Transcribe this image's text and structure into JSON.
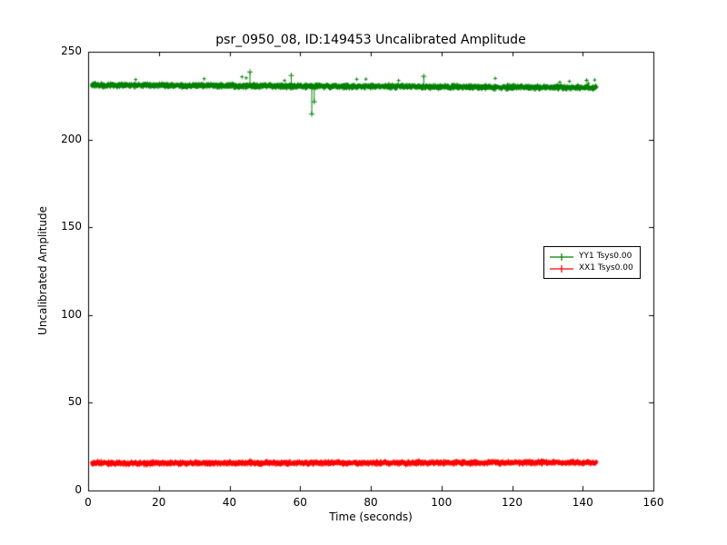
{
  "chart_data": {
    "type": "line",
    "title": "psr_0950_08, ID:149453 Uncalibrated Amplitude",
    "xlabel": "Time (seconds)",
    "ylabel": "Uncalibrated Amplitude",
    "xlim": [
      0,
      160
    ],
    "ylim": [
      0,
      250
    ],
    "xticks": [
      0,
      20,
      40,
      60,
      80,
      100,
      120,
      140,
      160
    ],
    "yticks": [
      0,
      50,
      100,
      150,
      200,
      250
    ],
    "grid": false,
    "legend": {
      "position": "center right",
      "entries": [
        {
          "label": "YY1 Tsys0.00",
          "color": "#008000"
        },
        {
          "label": "XX1 Tsys0.00",
          "color": "#ff0000"
        }
      ]
    },
    "series": [
      {
        "name": "YY1 Tsys0.00",
        "color": "#008000",
        "marker": "plus",
        "x_range": [
          1,
          144
        ],
        "baseline": 231,
        "trend_per_sec": -0.01,
        "noise_halfwidth": 1.2,
        "spike_prob": 0.006,
        "spike_up": 4,
        "seed": 42,
        "approx_x": [
          0,
          10,
          20,
          30,
          40,
          50,
          60,
          70,
          80,
          90,
          100,
          110,
          120,
          130,
          140,
          144
        ],
        "approx_values": [
          231,
          231,
          231.5,
          231,
          231,
          230.5,
          231,
          231,
          230.5,
          230.5,
          231,
          230.5,
          230.5,
          230.5,
          230,
          229.5
        ],
        "outliers": [
          {
            "x": 63.3,
            "y": 214.5
          },
          {
            "x": 64.0,
            "y": 221.5
          },
          {
            "x": 45.8,
            "y": 238.5
          },
          {
            "x": 57.5,
            "y": 236.5
          },
          {
            "x": 95.0,
            "y": 236.0
          }
        ]
      },
      {
        "name": "XX1 Tsys0.00",
        "color": "#ff0000",
        "marker": "plus",
        "x_range": [
          1,
          144
        ],
        "baseline": 15.5,
        "trend_per_sec": 0.003,
        "noise_halfwidth": 1.1,
        "spike_prob": 0.004,
        "spike_up": 1.5,
        "seed": 7,
        "approx_x": [
          0,
          10,
          20,
          30,
          40,
          50,
          60,
          70,
          80,
          90,
          100,
          110,
          120,
          130,
          140,
          144
        ],
        "approx_values": [
          15,
          15.5,
          15.5,
          16,
          16,
          15.5,
          16,
          16,
          16.5,
          16,
          16,
          16,
          15.5,
          15.5,
          15,
          15
        ],
        "outliers": []
      }
    ]
  }
}
